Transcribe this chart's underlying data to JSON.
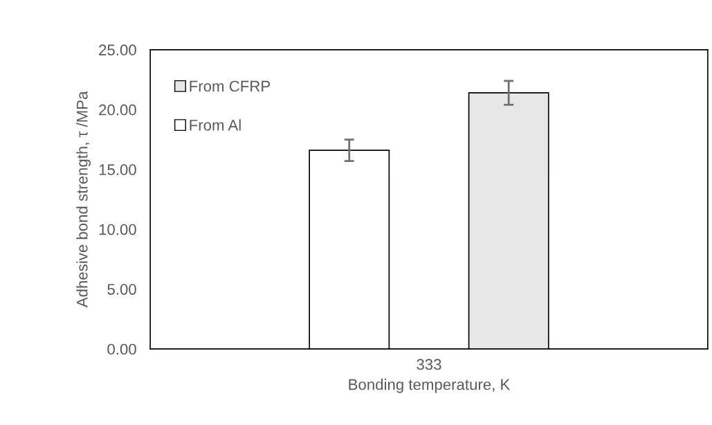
{
  "chart_data": {
    "type": "bar",
    "xlabel": "Bonding temperature, K",
    "ylabel": "Adhesive bond strength, τ /MPa",
    "categories": [
      "333"
    ],
    "series": [
      {
        "name": "From Al",
        "color": "#ffffff",
        "values": [
          16.6
        ],
        "errors": [
          0.9
        ]
      },
      {
        "name": "From CFRP",
        "color": "#e7e7e7",
        "values": [
          21.4
        ],
        "errors": [
          1.0
        ]
      }
    ],
    "ylim": [
      0,
      25
    ],
    "yticks": [
      {
        "value": 0,
        "label": "0.00"
      },
      {
        "value": 5,
        "label": "5.00"
      },
      {
        "value": 10,
        "label": "10.00"
      },
      {
        "value": 15,
        "label": "15.00"
      },
      {
        "value": 20,
        "label": "20.00"
      },
      {
        "value": 25,
        "label": "25.00"
      }
    ],
    "grid": false,
    "legend": "top left"
  }
}
